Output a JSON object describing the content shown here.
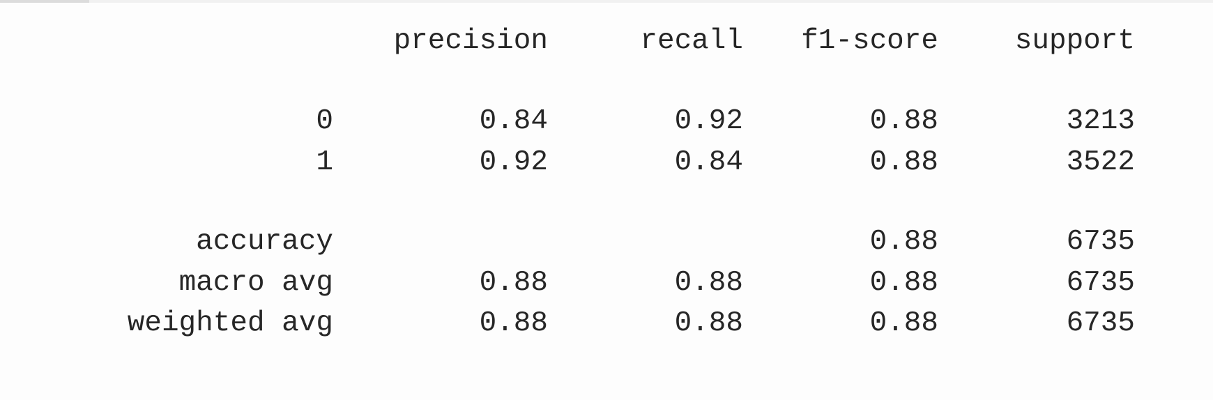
{
  "report": {
    "headers": [
      "precision",
      "recall",
      "f1-score",
      "support"
    ],
    "rows": [
      {
        "label": "0",
        "precision": "0.84",
        "recall": "0.92",
        "f1": "0.88",
        "support": "3213"
      },
      {
        "label": "1",
        "precision": "0.92",
        "recall": "0.84",
        "f1": "0.88",
        "support": "3522"
      },
      {
        "label": "accuracy",
        "precision": "",
        "recall": "",
        "f1": "0.88",
        "support": "6735"
      },
      {
        "label": "macro avg",
        "precision": "0.88",
        "recall": "0.88",
        "f1": "0.88",
        "support": "6735"
      },
      {
        "label": "weighted avg",
        "precision": "0.88",
        "recall": "0.88",
        "f1": "0.88",
        "support": "6735"
      }
    ]
  }
}
